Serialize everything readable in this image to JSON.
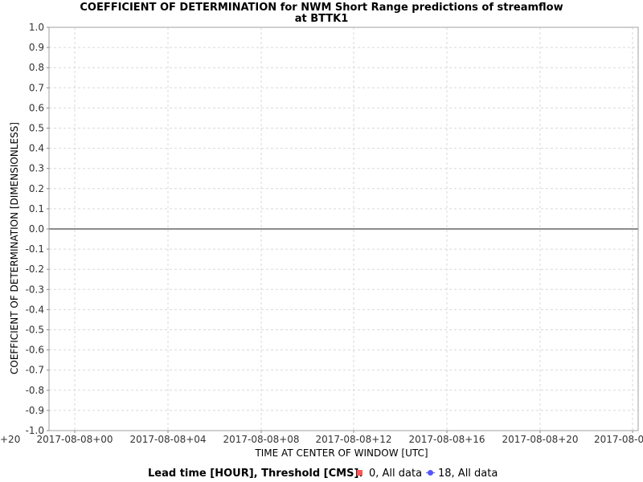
{
  "chart_data": {
    "type": "line",
    "title": "COEFFICIENT OF DETERMINATION for NWM Short Range predictions of streamflow",
    "subtitle": "at BTTK1",
    "xlabel": "TIME AT CENTER OF WINDOW [UTC]",
    "ylabel": "COEFFICIENT OF DETERMINATION [DIMENSIONLESS]",
    "ylim": [
      -1.0,
      1.0
    ],
    "yticks": [
      "1.0",
      "0.9",
      "0.8",
      "0.7",
      "0.6",
      "0.5",
      "0.4",
      "0.3",
      "0.2",
      "0.1",
      "0.0",
      "-0.1",
      "-0.2",
      "-0.3",
      "-0.4",
      "-0.5",
      "-0.6",
      "-0.7",
      "-0.8",
      "-0.9",
      "-1.0"
    ],
    "xticks": [
      "+20",
      "2017-08-08+00",
      "2017-08-08+04",
      "2017-08-08+08",
      "2017-08-08+12",
      "2017-08-08+16",
      "2017-08-08+20",
      "2017-08-0"
    ],
    "grid": true,
    "zero_line": 0.0,
    "legend_position": "bottom",
    "legend_title": "Lead time [HOUR], Threshold [CMS]:",
    "series": [
      {
        "name": "0, All data",
        "color": "#ff5555",
        "marker": "square",
        "values": []
      },
      {
        "name": "18, All data",
        "color": "#5555ff",
        "marker": "circle",
        "values": []
      }
    ]
  }
}
